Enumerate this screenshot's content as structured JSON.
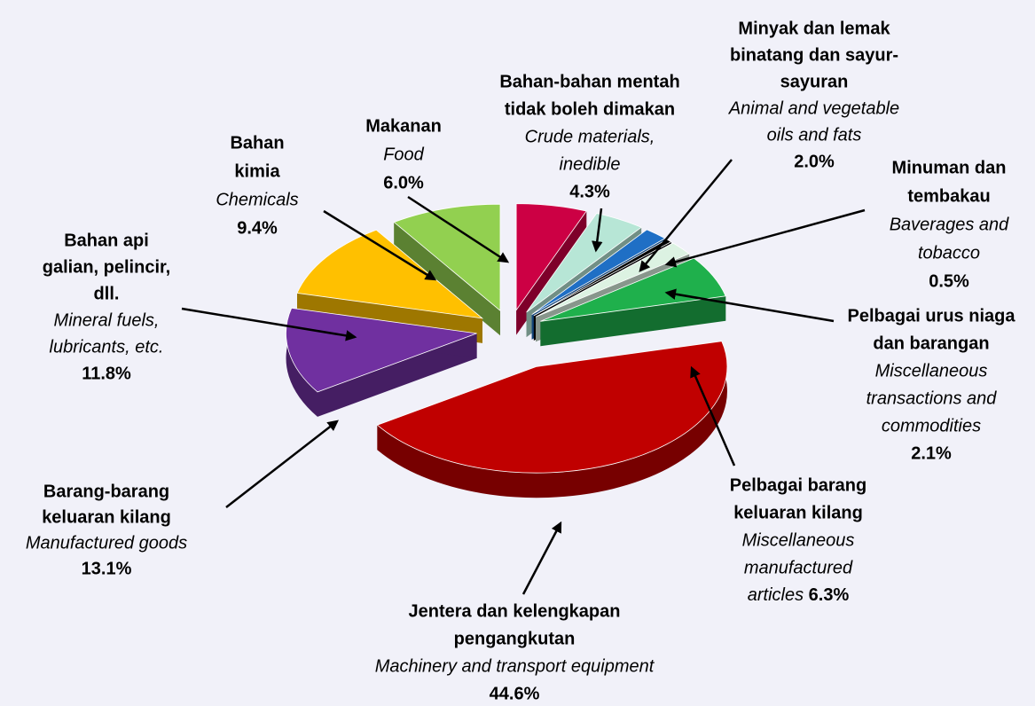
{
  "chart_data": {
    "type": "pie",
    "categories": [
      [
        "Jentera dan kelengkapan",
        "pengangkutan"
      ],
      [
        "Barang-barang",
        "keluaran kilang"
      ],
      [
        "Bahan api",
        "galian, pelincir,",
        "dll."
      ],
      [
        "Bahan",
        "kimia"
      ],
      [
        "Makanan"
      ],
      [
        "Bahan-bahan mentah",
        "tidak boleh dimakan"
      ],
      [
        "Minyak dan lemak",
        "binatang dan sayur-",
        "sayuran"
      ],
      [
        "Minuman dan",
        "tembakau"
      ],
      [
        "Pelbagai urus niaga",
        "dan barangan"
      ],
      [
        "Pelbagai barang",
        "keluaran kilang"
      ]
    ],
    "categories_en": [
      [
        "Machinery and transport equipment"
      ],
      [
        "Manufactured goods"
      ],
      [
        "Mineral fuels,",
        "lubricants, etc."
      ],
      [
        "Chemicals"
      ],
      [
        "Food"
      ],
      [
        "Crude materials,",
        "inedible"
      ],
      [
        "Animal and vegetable",
        "oils and fats"
      ],
      [
        "Baverages and",
        "tobacco"
      ],
      [
        "Miscellaneous",
        "transactions and",
        "commodities"
      ],
      [
        "Miscellaneous",
        "manufactured",
        "articles"
      ]
    ],
    "values": [
      44.6,
      13.1,
      11.8,
      9.4,
      6.0,
      4.3,
      2.0,
      0.5,
      2.1,
      6.3
    ],
    "value_labels": [
      "44.6%",
      "13.1%",
      "11.8%",
      "9.4%",
      "6.0%",
      "4.3%",
      "2.0%",
      "0.5%",
      "2.1%",
      "6.3%"
    ],
    "colors": [
      "#c00000",
      "#7030a0",
      "#ffc000",
      "#92d050",
      "#cc0044",
      "#b7e6d6",
      "#1f6fc5",
      "#000000",
      "#dcf2e2",
      "#1fb04c"
    ]
  }
}
